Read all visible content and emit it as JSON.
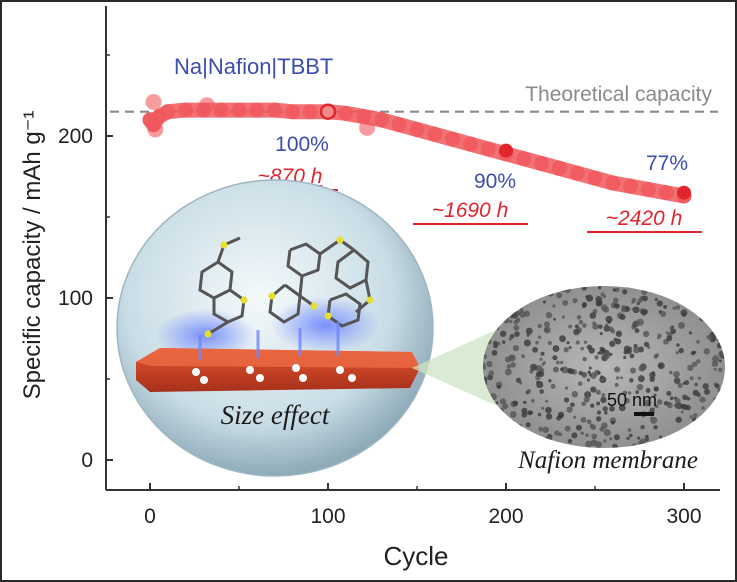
{
  "chart_data": {
    "type": "scatter",
    "title": "",
    "xlabel": "Cycle",
    "ylabel": "Specific capacity / mAh g⁻¹",
    "xlim": [
      -10,
      320
    ],
    "ylim": [
      -15,
      280
    ],
    "xticks": [
      0,
      100,
      200,
      300
    ],
    "yticks": [
      0,
      100,
      200
    ],
    "grid": false,
    "theoretical_capacity": {
      "label": "Theoretical capacity",
      "value": 215
    },
    "series": [
      {
        "name": "Na|Nafion|TBBT",
        "color": "#f0585d",
        "x": [
          0,
          2,
          5,
          10,
          20,
          30,
          40,
          50,
          60,
          70,
          80,
          90,
          100,
          110,
          120,
          130,
          140,
          150,
          160,
          170,
          180,
          190,
          200,
          210,
          220,
          230,
          240,
          250,
          260,
          270,
          280,
          290,
          300
        ],
        "values": [
          210,
          207,
          212,
          215,
          216,
          216,
          216,
          216,
          216,
          216,
          215,
          215,
          215,
          214,
          212,
          210,
          207,
          204,
          201,
          198,
          195,
          192,
          189,
          186,
          183,
          180,
          177,
          174,
          171,
          169,
          167,
          165,
          163
        ]
      }
    ],
    "scatter_points": [
      {
        "x": 2,
        "y": 221
      },
      {
        "x": 32,
        "y": 219
      },
      {
        "x": 3,
        "y": 204
      },
      {
        "x": 122,
        "y": 205
      }
    ],
    "annotations": [
      {
        "x": 100,
        "y": 215,
        "percent": "100%",
        "hours": "~870 h",
        "marker": "hollow"
      },
      {
        "x": 200,
        "y": 191,
        "percent": "90%",
        "hours": "~1690 h",
        "marker": "filled"
      },
      {
        "x": 300,
        "y": 165,
        "percent": "77%",
        "hours": "~2420 h",
        "marker": "filled"
      }
    ]
  },
  "insets": {
    "bubble_label": "Size effect",
    "membrane_label": "Nafion membrane",
    "scale_bar": "50 nm"
  },
  "colors": {
    "series": "#f0585d",
    "label_blue": "#3b4db0",
    "hours_red": "#e0262c",
    "dashed_line": "#8a8a8a",
    "axis": "#333333"
  }
}
